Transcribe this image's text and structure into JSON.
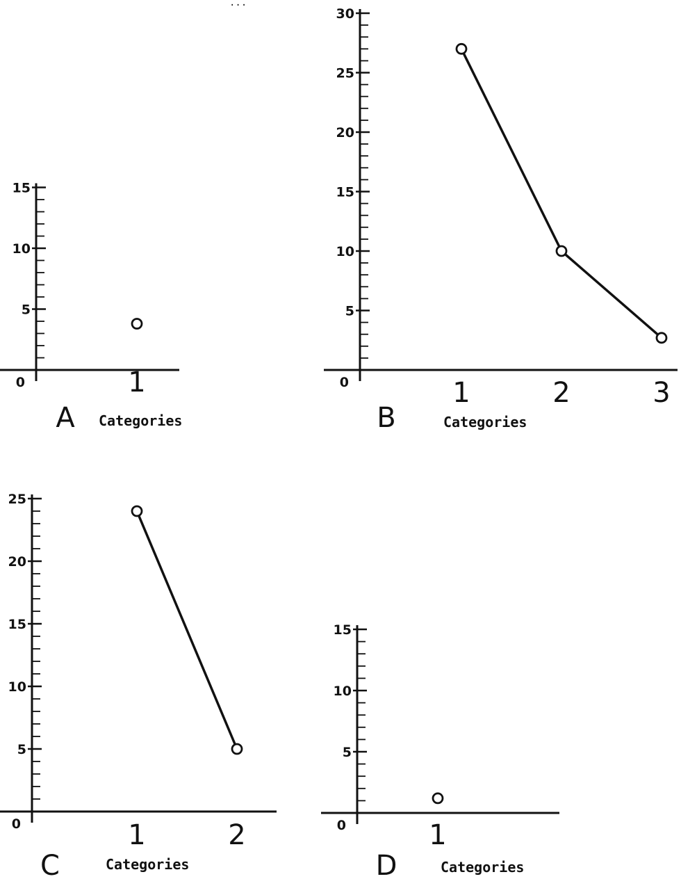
{
  "header_text": "...",
  "chart_data": [
    {
      "panel": "A",
      "type": "scatter",
      "xlabel": "Categories",
      "categories": [
        "1"
      ],
      "yticks": [
        5,
        10,
        15
      ],
      "series": [
        {
          "values": [
            3.8
          ]
        }
      ],
      "ylim": [
        0,
        15
      ],
      "grid": false
    },
    {
      "panel": "B",
      "type": "line",
      "xlabel": "Categories",
      "categories": [
        "1",
        "2",
        "3"
      ],
      "yticks": [
        5,
        10,
        15,
        20,
        25,
        30
      ],
      "series": [
        {
          "values": [
            27,
            10,
            2.7
          ]
        }
      ],
      "ylim": [
        0,
        30
      ],
      "grid": false
    },
    {
      "panel": "C",
      "type": "line",
      "xlabel": "Categories",
      "categories": [
        "1",
        "2"
      ],
      "yticks": [
        5,
        10,
        15,
        20,
        25
      ],
      "series": [
        {
          "values": [
            24,
            5
          ]
        }
      ],
      "ylim": [
        0,
        25
      ],
      "grid": false
    },
    {
      "panel": "D",
      "type": "scatter",
      "xlabel": "Categories",
      "categories": [
        "1"
      ],
      "yticks": [
        5,
        10,
        15
      ],
      "series": [
        {
          "values": [
            1.2
          ]
        }
      ],
      "ylim": [
        0,
        15
      ],
      "grid": false
    }
  ]
}
